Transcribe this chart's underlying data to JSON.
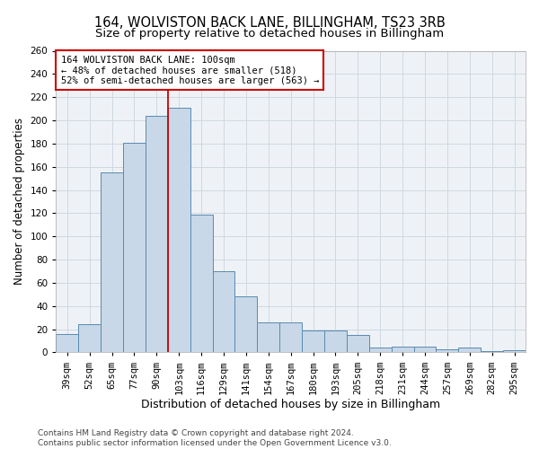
{
  "title1": "164, WOLVISTON BACK LANE, BILLINGHAM, TS23 3RB",
  "title2": "Size of property relative to detached houses in Billingham",
  "xlabel": "Distribution of detached houses by size in Billingham",
  "ylabel": "Number of detached properties",
  "categories": [
    "39sqm",
    "52sqm",
    "65sqm",
    "77sqm",
    "90sqm",
    "103sqm",
    "116sqm",
    "129sqm",
    "141sqm",
    "154sqm",
    "167sqm",
    "180sqm",
    "193sqm",
    "205sqm",
    "218sqm",
    "231sqm",
    "244sqm",
    "257sqm",
    "269sqm",
    "282sqm",
    "295sqm"
  ],
  "values": [
    16,
    24,
    155,
    181,
    204,
    211,
    119,
    70,
    48,
    26,
    26,
    19,
    19,
    15,
    4,
    5,
    5,
    3,
    4,
    1,
    2
  ],
  "bar_color": "#c8d8e8",
  "bar_edge_color": "#5a8ab0",
  "vline_color": "#cc0000",
  "annotation_line1": "164 WOLVISTON BACK LANE: 100sqm",
  "annotation_line2": "← 48% of detached houses are smaller (518)",
  "annotation_line3": "52% of semi-detached houses are larger (563) →",
  "annotation_box_color": "#ffffff",
  "annotation_box_edge": "#cc0000",
  "footer1": "Contains HM Land Registry data © Crown copyright and database right 2024.",
  "footer2": "Contains public sector information licensed under the Open Government Licence v3.0.",
  "ylim": [
    0,
    260
  ],
  "yticks": [
    0,
    20,
    40,
    60,
    80,
    100,
    120,
    140,
    160,
    180,
    200,
    220,
    240,
    260
  ],
  "grid_color": "#d0d8e0",
  "bg_color": "#eef2f6",
  "title1_fontsize": 10.5,
  "title2_fontsize": 9.5,
  "xlabel_fontsize": 9,
  "ylabel_fontsize": 8.5,
  "tick_fontsize": 7.5,
  "footer_fontsize": 6.5,
  "annotation_fontsize": 7.5,
  "vline_bin_index": 5
}
